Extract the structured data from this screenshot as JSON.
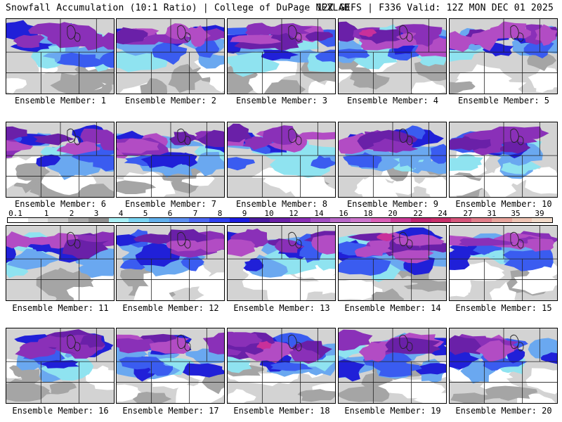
{
  "header": {
    "left": "Snowfall Accumulation (10:1 Ratio) | College of DuPage NEXLAB",
    "right": "12Z GEFS | F336 Valid: 12Z MON DEC 01 2025"
  },
  "colorbar": {
    "labels": [
      "0.1",
      "1",
      "2",
      "3",
      "4",
      "5",
      "6",
      "7",
      "8",
      "9",
      "10",
      "12",
      "14",
      "16",
      "18",
      "20",
      "22",
      "24",
      "27",
      "31",
      "35",
      "39"
    ],
    "colors": [
      "#ffffff",
      "#e2e2e2",
      "#c8c8c8",
      "#a9a9a9",
      "#8e8e8e",
      "#a8f0f5",
      "#7ad4f2",
      "#62b0ec",
      "#5c8ff0",
      "#4a66f2",
      "#2f3ff0",
      "#1c1ce0",
      "#4a1ba0",
      "#6a1fa6",
      "#8a2fb4",
      "#a14fc2",
      "#b868c8",
      "#cc76cc",
      "#d95fb6",
      "#c93a96",
      "#c0256f",
      "#c8306a",
      "#d5567b",
      "#e07e8a",
      "#e8a49c",
      "#eec4b4",
      "#f2dac9"
    ]
  },
  "panels": [
    {
      "label": "Ensemble Member: 1",
      "snow_level": 0.55
    },
    {
      "label": "Ensemble Member: 2",
      "snow_level": 0.5
    },
    {
      "label": "Ensemble Member: 3",
      "snow_level": 0.6
    },
    {
      "label": "Ensemble Member: 4",
      "snow_level": 0.65
    },
    {
      "label": "Ensemble Member: 5",
      "snow_level": 0.5
    },
    {
      "label": "Ensemble Member: 6",
      "snow_level": 0.55
    },
    {
      "label": "Ensemble Member: 7",
      "snow_level": 0.6
    },
    {
      "label": "Ensemble Member: 8",
      "snow_level": 0.45
    },
    {
      "label": "Ensemble Member: 9",
      "snow_level": 0.6
    },
    {
      "label": "Ensemble Member: 10",
      "snow_level": 0.55
    },
    {
      "label": "Ensemble Member: 11",
      "snow_level": 0.5
    },
    {
      "label": "Ensemble Member: 12",
      "snow_level": 0.55
    },
    {
      "label": "Ensemble Member: 13",
      "snow_level": 0.45
    },
    {
      "label": "Ensemble Member: 14",
      "snow_level": 0.75
    },
    {
      "label": "Ensemble Member: 15",
      "snow_level": 0.4
    },
    {
      "label": "Ensemble Member: 16",
      "snow_level": 0.6
    },
    {
      "label": "Ensemble Member: 17",
      "snow_level": 0.4
    },
    {
      "label": "Ensemble Member: 18",
      "snow_level": 0.65
    },
    {
      "label": "Ensemble Member: 19",
      "snow_level": 0.5
    },
    {
      "label": "Ensemble Member: 20",
      "snow_level": 0.45
    }
  ]
}
